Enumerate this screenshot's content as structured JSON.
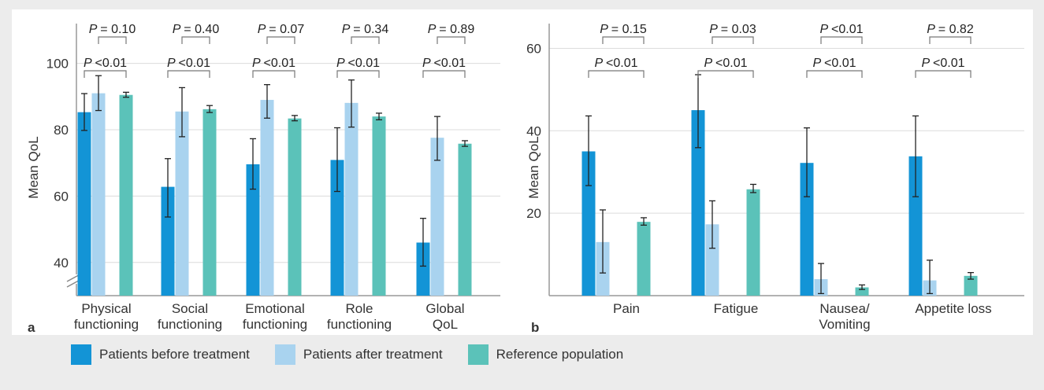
{
  "colors": {
    "before": "#1394d6",
    "after": "#a9d3ef",
    "reference": "#5bc2b9"
  },
  "legend": [
    {
      "key": "before",
      "label": "Patients before treatment"
    },
    {
      "key": "after",
      "label": "Patients after treatment"
    },
    {
      "key": "reference",
      "label": "Reference population"
    }
  ],
  "chart_data": [
    {
      "panel": "a",
      "type": "bar",
      "ylabel": "Mean QoL",
      "ylim": [
        30,
        112
      ],
      "yticks": [
        40,
        60,
        80,
        100
      ],
      "axis_break": true,
      "grid": true,
      "categories": [
        {
          "line1": "Physical",
          "line2": "functioning"
        },
        {
          "line1": "Social",
          "line2": "functioning"
        },
        {
          "line1": "Emotional",
          "line2": "functioning"
        },
        {
          "line1": "Role",
          "line2": "functioning"
        },
        {
          "line1": "Global",
          "line2": "QoL"
        }
      ],
      "series": [
        {
          "name": "Patients before treatment",
          "key": "before",
          "values": [
            85.3,
            62.8,
            69.6,
            70.9,
            46.0
          ],
          "err_low": [
            79.8,
            53.7,
            62.1,
            61.4,
            38.9
          ],
          "err_high": [
            90.9,
            71.3,
            77.3,
            80.6,
            53.3
          ]
        },
        {
          "name": "Patients after treatment",
          "key": "after",
          "values": [
            91.0,
            85.5,
            89.0,
            88.1,
            77.6
          ],
          "err_low": [
            85.8,
            77.9,
            83.5,
            80.8,
            70.8
          ],
          "err_high": [
            96.3,
            92.7,
            93.6,
            95.0,
            84.0
          ]
        },
        {
          "name": "Reference population",
          "key": "reference",
          "values": [
            90.5,
            86.2,
            83.4,
            84.0,
            75.8
          ],
          "err_low": [
            89.8,
            85.2,
            82.7,
            83.0,
            75.0
          ],
          "err_high": [
            91.3,
            87.3,
            84.3,
            85.0,
            76.7
          ]
        }
      ],
      "p_values": [
        {
          "top": "= 0.10",
          "bottom": "<0.01"
        },
        {
          "top": "= 0.40",
          "bottom": "<0.01"
        },
        {
          "top": "= 0.07",
          "bottom": "<0.01"
        },
        {
          "top": "= 0.34",
          "bottom": "<0.01"
        },
        {
          "top": "= 0.89",
          "bottom": "<0.01"
        }
      ]
    },
    {
      "panel": "b",
      "type": "bar",
      "ylabel": "Mean QoL",
      "ylim": [
        0,
        66
      ],
      "yticks": [
        20,
        40,
        60
      ],
      "axis_break": false,
      "grid": true,
      "categories": [
        {
          "line1": "Pain",
          "line2": ""
        },
        {
          "line1": "Fatigue",
          "line2": ""
        },
        {
          "line1": "Nausea/",
          "line2": "Vomiting"
        },
        {
          "line1": "Appetite loss",
          "line2": ""
        }
      ],
      "series": [
        {
          "name": "Patients before treatment",
          "key": "before",
          "values": [
            35.0,
            45.0,
            32.2,
            33.8
          ],
          "err_low": [
            26.7,
            35.9,
            24.0,
            24.0
          ],
          "err_high": [
            43.6,
            53.6,
            40.7,
            43.6
          ]
        },
        {
          "name": "Patients after treatment",
          "key": "after",
          "values": [
            13.0,
            17.3,
            4.0,
            3.7
          ],
          "err_low": [
            5.5,
            11.5,
            0.5,
            0.5
          ],
          "err_high": [
            20.8,
            23.0,
            7.8,
            8.6
          ]
        },
        {
          "name": "Reference population",
          "key": "reference",
          "values": [
            17.9,
            25.8,
            2.0,
            4.8
          ],
          "err_low": [
            17.1,
            25.0,
            1.5,
            4.0
          ],
          "err_high": [
            18.9,
            27.0,
            2.6,
            5.6
          ]
        }
      ],
      "p_values": [
        {
          "top": "= 0.15",
          "bottom": "<0.01"
        },
        {
          "top": "= 0.03",
          "bottom": "<0.01"
        },
        {
          "top": "<0.01",
          "bottom": "<0.01"
        },
        {
          "top": "= 0.82",
          "bottom": "<0.01"
        }
      ]
    }
  ]
}
